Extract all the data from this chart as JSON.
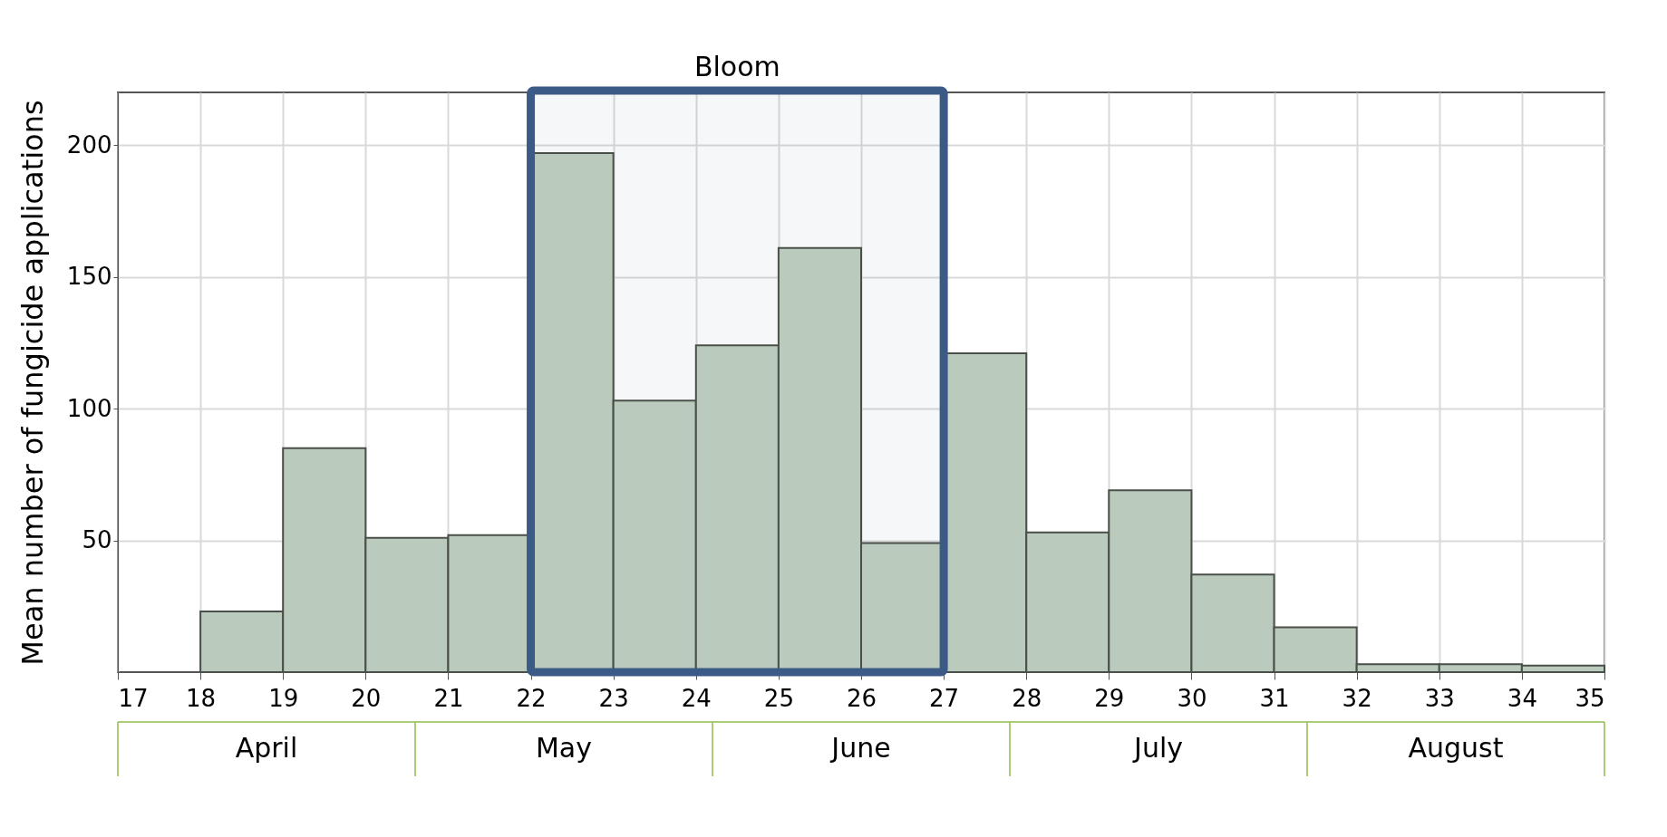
{
  "chart_data": {
    "type": "histogram",
    "ylabel": "Mean number of fungicide applications",
    "bins": [
      18,
      19,
      20,
      21,
      22,
      23,
      24,
      25,
      26,
      27,
      28,
      29,
      30,
      31,
      32,
      33,
      34,
      35
    ],
    "values": [
      23,
      85,
      51,
      52,
      197,
      103,
      124,
      161,
      49,
      121,
      53,
      69,
      37,
      17,
      3,
      3,
      2.5
    ],
    "color": "#bacbbd",
    "xlim": [
      17,
      35
    ],
    "xticks": [
      17,
      18,
      19,
      20,
      21,
      22,
      23,
      24,
      25,
      26,
      27,
      28,
      29,
      30,
      31,
      32,
      33,
      34,
      35
    ],
    "ylim": [
      0,
      220
    ],
    "yticks": [
      50,
      100,
      150,
      200
    ],
    "grid": true,
    "bands": [
      {
        "axis": "x",
        "from": 22,
        "to": 27,
        "label": "Bloom",
        "color": "#3b5a85"
      }
    ],
    "annotations": [
      "April",
      "May",
      "June",
      "July",
      "August"
    ]
  }
}
